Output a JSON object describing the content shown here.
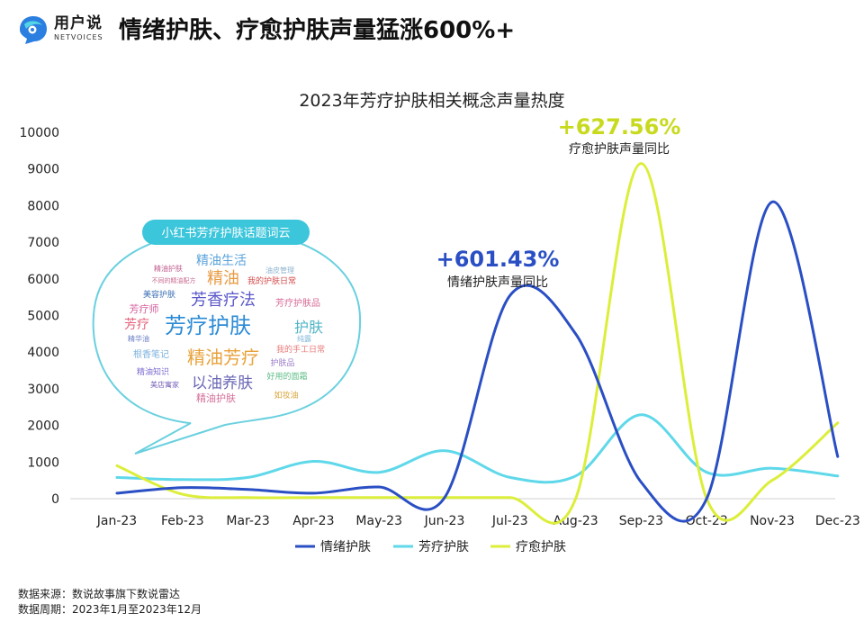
{
  "header": {
    "brand_cn": "用户说",
    "brand_en": "NETVOICES",
    "headline": "情绪护肤、疗愈护肤声量猛涨600%+"
  },
  "footer": {
    "source": "数据来源：数说故事旗下数说雷达",
    "period": "数据周期：2023年1月至2023年12月"
  },
  "colors": {
    "series1": "#2a4fc4",
    "series2": "#5fd8ea",
    "series3": "#dcee3a",
    "bubble_border": "#6ad0df",
    "bubble_title_bg": "#3cc6db",
    "anno_blue": "#2a4fc4",
    "anno_green": "#c8da1e"
  },
  "chart_data": {
    "type": "line",
    "title": "2023年芳疗护肤相关概念声量热度",
    "xlabel": "",
    "ylabel": "",
    "categories": [
      "Jan-23",
      "Feb-23",
      "Mar-23",
      "Apr-23",
      "May-23",
      "Jun-23",
      "Jul-23",
      "Aug-23",
      "Sep-23",
      "Oct-23",
      "Nov-23",
      "Dec-23"
    ],
    "ylim": [
      0,
      10000
    ],
    "yticks": [
      0,
      1000,
      2000,
      3000,
      4000,
      5000,
      6000,
      7000,
      8000,
      9000,
      10000
    ],
    "grid": false,
    "legend": "bottom",
    "series": [
      {
        "name": "情绪护肤",
        "values": [
          150,
          300,
          250,
          150,
          320,
          30,
          5550,
          4500,
          450,
          0,
          8100,
          1150
        ]
      },
      {
        "name": "芳疗护肤",
        "values": [
          580,
          520,
          580,
          1020,
          720,
          1310,
          580,
          620,
          2290,
          720,
          830,
          620
        ]
      },
      {
        "name": "疗愈护肤",
        "values": [
          900,
          120,
          30,
          30,
          30,
          30,
          30,
          0,
          9150,
          0,
          500,
          2070
        ]
      }
    ],
    "annotations": [
      {
        "value": "+601.43%",
        "text": "情绪护肤声量同比"
      },
      {
        "value": "+627.56%",
        "text": "疗愈护肤声量同比"
      }
    ]
  },
  "word_cloud": {
    "title": "小红书芳疗护肤话题词云",
    "words": [
      {
        "text": "芳疗护肤",
        "color": "#2c8bd6"
      },
      {
        "text": "精油芳疗",
        "color": "#e8a23a"
      },
      {
        "text": "芳香疗法",
        "color": "#5b57c9"
      },
      {
        "text": "以油养肤",
        "color": "#6a67b5"
      },
      {
        "text": "精油",
        "color": "#e89a42"
      },
      {
        "text": "精油生活",
        "color": "#5aa3dc"
      },
      {
        "text": "护肤",
        "color": "#4fb4c6"
      },
      {
        "text": "芳疗",
        "color": "#e5607a"
      },
      {
        "text": "芳疗师",
        "color": "#d45b9c"
      },
      {
        "text": "精油护肤",
        "color": "#c0608f"
      },
      {
        "text": "根香笔记",
        "color": "#7db3df"
      },
      {
        "text": "精油知识",
        "color": "#7a6bd0"
      },
      {
        "text": "美容护肤",
        "color": "#3d6fb5"
      },
      {
        "text": "油皮管理",
        "color": "#8fb4cf"
      },
      {
        "text": "我的护肤日常",
        "color": "#d44c4c"
      },
      {
        "text": "芳疗护肤品",
        "color": "#d86b96"
      },
      {
        "text": "精油护肤",
        "color": "#d46f98"
      },
      {
        "text": "我的手工日常",
        "color": "#e97a7a"
      },
      {
        "text": "好用的面霜",
        "color": "#5cbc86"
      },
      {
        "text": "美店寓家",
        "color": "#7761b8"
      },
      {
        "text": "如妆油",
        "color": "#d9a63c"
      },
      {
        "text": "护肤品",
        "color": "#9a7bc7"
      },
      {
        "text": "纯露",
        "color": "#7fb7d9"
      },
      {
        "text": "精华油",
        "color": "#6b7fc7"
      },
      {
        "text": "不同的精油配方",
        "color": "#c86a8f"
      }
    ]
  },
  "legend": {
    "items": [
      "情绪护肤",
      "芳疗护肤",
      "疗愈护肤"
    ]
  }
}
